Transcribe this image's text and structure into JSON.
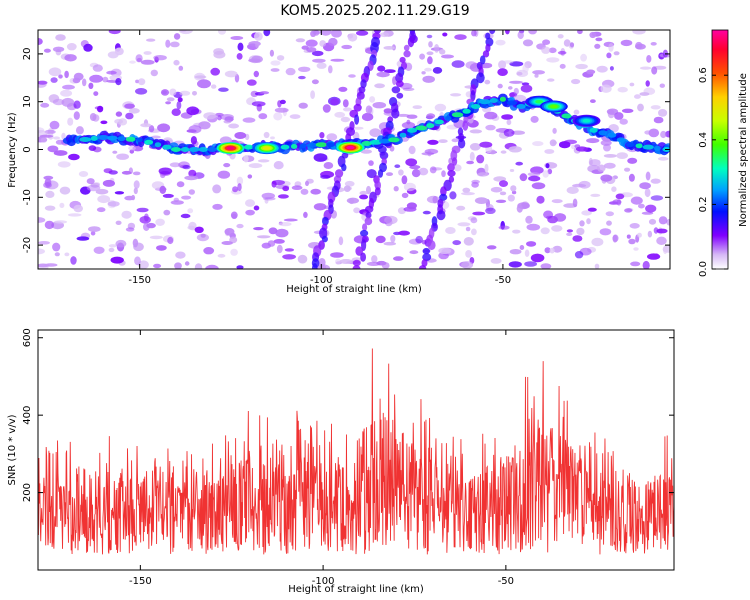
{
  "title": "KOM5.2025.202.11.29.G19",
  "chart_data": [
    {
      "type": "heatmap",
      "xlabel": "Height of straight line (km)",
      "ylabel": "Frequency (Hz)",
      "xlim": [
        -178,
        -4
      ],
      "ylim": [
        -25,
        25
      ],
      "xticks": [
        -150,
        -100,
        -50
      ],
      "yticks": [
        -20,
        -10,
        0,
        10,
        20
      ],
      "colorbar": {
        "label": "Normalized spectral amplitude",
        "range": [
          0.0,
          0.74
        ],
        "ticks": [
          "0.0",
          "0.2",
          "0.4",
          "0.6"
        ],
        "tick_values": [
          0.0,
          0.2,
          0.4,
          0.6
        ],
        "colors": [
          "#ffffff",
          "#c9a8f0",
          "#7a00ff",
          "#0000ff",
          "#00b4ff",
          "#00ffa0",
          "#40ff00",
          "#c8ff00",
          "#ffe000",
          "#ff6000",
          "#ff0000",
          "#ff0090"
        ]
      },
      "ridge": {
        "description_points_x": [
          -178,
          -160,
          -150,
          -140,
          -130,
          -120,
          -110,
          -100,
          -90,
          -80,
          -75,
          -70,
          -60,
          -55,
          -50,
          -45,
          -40,
          -35,
          -30,
          -25,
          -20,
          -15,
          -10,
          -5
        ],
        "description_points_y": [
          1,
          2.5,
          2,
          0,
          0,
          0.5,
          0.5,
          1,
          1,
          2,
          4,
          5,
          8,
          10,
          10.5,
          9,
          10,
          8,
          6,
          4,
          3,
          1,
          0.5,
          0
        ]
      },
      "hotspots": [
        {
          "x": -125,
          "y": 0.3,
          "amp": 0.72
        },
        {
          "x": -115,
          "y": 0.3,
          "amp": 0.5
        },
        {
          "x": -92,
          "y": 0.4,
          "amp": 0.74
        },
        {
          "x": -40,
          "y": 10,
          "amp": 0.35
        },
        {
          "x": -36,
          "y": 9,
          "amp": 0.4
        },
        {
          "x": -27,
          "y": 6,
          "amp": 0.3
        }
      ],
      "streaks": [
        {
          "x_top": -84,
          "x_bottom": -102,
          "desc": "faint diagonal"
        },
        {
          "x_top": -75,
          "x_bottom": -90,
          "desc": "vertical band"
        },
        {
          "x_top": -53,
          "x_bottom": -72,
          "desc": "diagonal band"
        }
      ]
    },
    {
      "type": "line",
      "xlabel": "Height of straight line (km)",
      "ylabel": "SNR (10 * v/v)",
      "xlim": [
        -178,
        -4
      ],
      "ylim": [
        0,
        620
      ],
      "xticks": [
        -150,
        -100,
        -50
      ],
      "yticks": [
        200,
        400,
        600
      ],
      "color": "#f03232",
      "envelope": {
        "x": [
          -178,
          -165,
          -155,
          -140,
          -130,
          -120,
          -110,
          -100,
          -92,
          -88,
          -86,
          -80,
          -75,
          -70,
          -65,
          -60,
          -50,
          -45,
          -40,
          -35,
          -30,
          -20,
          -10,
          -4
        ],
        "mean": [
          150,
          170,
          160,
          150,
          160,
          180,
          185,
          175,
          170,
          240,
          250,
          240,
          220,
          200,
          175,
          150,
          190,
          230,
          250,
          230,
          200,
          165,
          150,
          160
        ],
        "peak": [
          330,
          360,
          340,
          310,
          340,
          420,
          430,
          380,
          380,
          580,
          620,
          520,
          470,
          420,
          360,
          330,
          420,
          500,
          550,
          470,
          400,
          330,
          300,
          390
        ]
      }
    }
  ]
}
